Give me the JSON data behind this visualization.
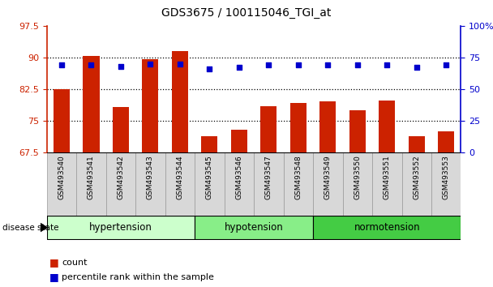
{
  "title": "GDS3675 / 100115046_TGI_at",
  "samples": [
    "GSM493540",
    "GSM493541",
    "GSM493542",
    "GSM493543",
    "GSM493544",
    "GSM493545",
    "GSM493546",
    "GSM493547",
    "GSM493548",
    "GSM493549",
    "GSM493550",
    "GSM493551",
    "GSM493552",
    "GSM493553"
  ],
  "bar_values": [
    82.5,
    90.3,
    78.2,
    89.5,
    91.5,
    71.2,
    72.8,
    78.5,
    79.2,
    79.5,
    77.5,
    79.8,
    71.2,
    72.5
  ],
  "dot_values_pct": [
    69,
    69,
    68,
    70,
    70,
    66,
    67,
    69,
    69,
    69,
    69,
    69,
    67,
    69
  ],
  "ylim_left": [
    67.5,
    97.5
  ],
  "ylim_right": [
    0,
    100
  ],
  "yticks_left": [
    67.5,
    75.0,
    82.5,
    90.0,
    97.5
  ],
  "ytick_labels_left": [
    "67.5",
    "75",
    "82.5",
    "90",
    "97.5"
  ],
  "yticks_right": [
    0,
    25,
    50,
    75,
    100
  ],
  "ytick_labels_right": [
    "0",
    "25",
    "50",
    "75",
    "100%"
  ],
  "groups": [
    {
      "label": "hypertension",
      "start": 0,
      "end": 5,
      "color": "#ccffcc"
    },
    {
      "label": "hypotension",
      "start": 5,
      "end": 9,
      "color": "#88ee88"
    },
    {
      "label": "normotension",
      "start": 9,
      "end": 14,
      "color": "#44cc44"
    }
  ],
  "bar_color": "#cc2200",
  "dot_color": "#0000cc",
  "bar_width": 0.55,
  "tick_label_color_left": "#cc2200",
  "tick_label_color_right": "#0000cc",
  "disease_label": "disease state",
  "legend_count": "count",
  "legend_pct": "percentile rank within the sample",
  "bg_gray": "#d8d8d8"
}
